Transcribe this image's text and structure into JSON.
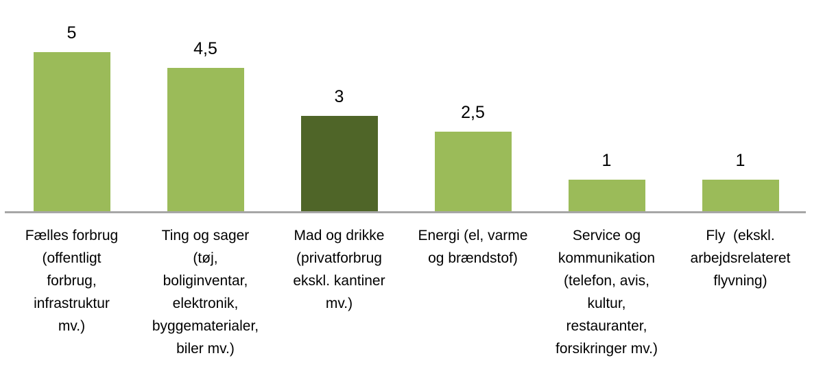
{
  "chart_data": {
    "type": "bar",
    "title": "",
    "xlabel": "",
    "ylabel": "",
    "ylim": [
      0,
      5
    ],
    "grid": false,
    "legend": "none",
    "categories": [
      "Fælles forbrug (offentligt forbrug, infrastruktur mv.)",
      "Ting og sager (tøj, boliginventar, elektronik, byggematerialer, biler mv.)",
      "Mad og drikke (privatforbrug ekskl. kantiner mv.)",
      "Energi (el, varme og brændstof)",
      "Service og kommunikation (telefon, avis, kultur, restauranter, forsikringer mv.)",
      "Fly (ekskl. arbejdsrelateret flyvning)"
    ],
    "categories_display": [
      "Fælles forbrug\n(offentligt\nforbrug,\ninfrastruktur\nmv.)",
      "Ting og sager\n(tøj,\nboliginventar,\nelektronik,\nbyggematerialer,\nbiler mv.)",
      "Mad og drikke\n(privatforbrug\nekskl. kantiner\nmv.)",
      "Energi (el, varme\nog brændstof)",
      "Service og\nkommunikation\n(telefon, avis,\nkultur,\nrestauranter,\nforsikringer mv.)",
      "Fly  (ekskl.\narbejdsrelateret\nflyvning)"
    ],
    "values": [
      5,
      4.5,
      3,
      2.5,
      1,
      1
    ],
    "value_labels": [
      "5",
      "4,5",
      "3",
      "2,5",
      "1",
      "1"
    ],
    "emphasized_index": 2,
    "colors": {
      "bar": "#9BBB59",
      "bar_emphasis": "#4F6528",
      "axis_line": "#A6A6A6",
      "text": "#000000",
      "background": "#FFFFFF"
    }
  }
}
